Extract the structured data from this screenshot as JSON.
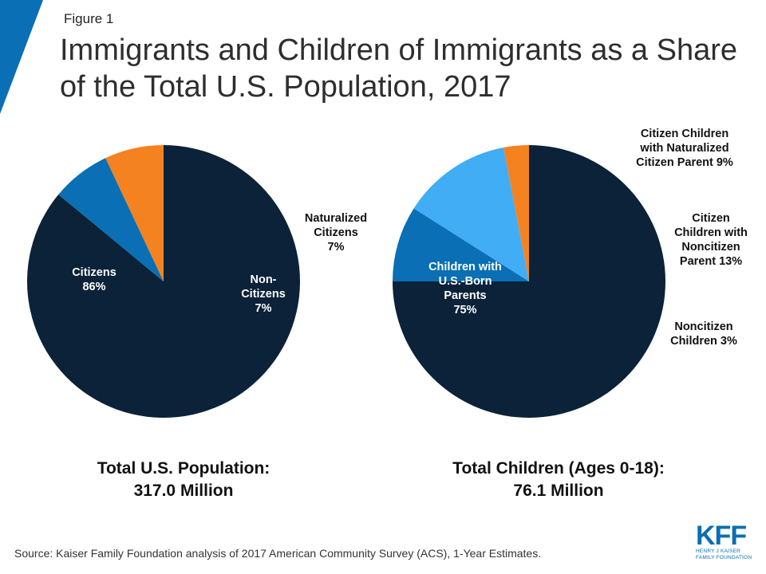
{
  "figure_label": "Figure 1",
  "title": "Immigrants and Children of Immigrants as a Share of the Total U.S. Population, 2017",
  "chart_data": [
    {
      "type": "pie",
      "slices": [
        {
          "label_lines": [
            "Citizens",
            "86%"
          ],
          "value": 86,
          "color": "#0b2239"
        },
        {
          "label_lines": [
            "Naturalized",
            "Citizens",
            "7%"
          ],
          "value": 7,
          "color": "#0a6fb4"
        },
        {
          "label_lines": [
            "Non-",
            "Citizens",
            "7%"
          ],
          "value": 7,
          "color": "#f58220"
        }
      ],
      "total_lines": [
        "Total U.S. Population:",
        "317.0 Million"
      ]
    },
    {
      "type": "pie",
      "slices": [
        {
          "label_lines": [
            "Children with",
            "U.S.-Born",
            "Parents",
            "75%"
          ],
          "value": 75,
          "color": "#0b2239"
        },
        {
          "label_lines": [
            "Citizen Children",
            "with Naturalized",
            "Citizen Parent 9%"
          ],
          "value": 9,
          "color": "#0a6fb4"
        },
        {
          "label_lines": [
            "Citizen",
            "Children with",
            "Noncitizen",
            "Parent 13%"
          ],
          "value": 13,
          "color": "#41adf5"
        },
        {
          "label_lines": [
            "Noncitizen",
            "Children 3%"
          ],
          "value": 3,
          "color": "#f58220"
        }
      ],
      "total_lines": [
        "Total Children (Ages 0-18):",
        "76.1 Million"
      ]
    }
  ],
  "source": "Source: Kaiser Family Foundation analysis of 2017 American Community Survey (ACS), 1-Year Estimates.",
  "logo": {
    "mark": "KFF",
    "line1": "HENRY J KAISER",
    "line2": "FAMILY FOUNDATION"
  },
  "colors": {
    "accent": "#0a6fb4",
    "navy": "#0b2239",
    "orange": "#f58220",
    "light_blue": "#41adf5"
  }
}
